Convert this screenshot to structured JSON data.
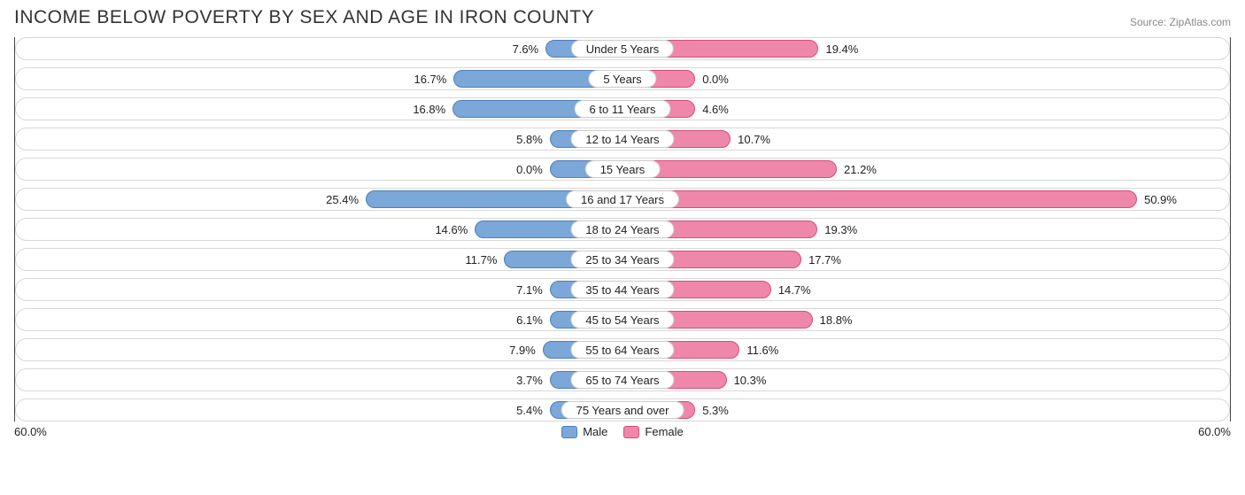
{
  "title": "INCOME BELOW POVERTY BY SEX AND AGE IN IRON COUNTY",
  "source": "Source: ZipAtlas.com",
  "chart": {
    "type": "diverging-bar",
    "axis_max": 60.0,
    "axis_label_left": "60.0%",
    "axis_label_right": "60.0%",
    "male_fill": "#7ba7d9",
    "male_border": "#4f7fb8",
    "female_fill": "#ef87ab",
    "female_border": "#d74c7b",
    "row_bg": "#ffffff",
    "row_border": "#d8d8d8",
    "category_pill_bg": "#ffffff",
    "category_pill_border": "#cccccc",
    "text_color": "#222222",
    "label_fontsize": 13,
    "title_fontsize": 21,
    "title_color": "#333333",
    "source_color": "#888888",
    "categories": [
      {
        "label": "Under 5 Years",
        "male": 7.6,
        "female": 19.4
      },
      {
        "label": "5 Years",
        "male": 16.7,
        "female": 0.0
      },
      {
        "label": "6 to 11 Years",
        "male": 16.8,
        "female": 4.6
      },
      {
        "label": "12 to 14 Years",
        "male": 5.8,
        "female": 10.7
      },
      {
        "label": "15 Years",
        "male": 0.0,
        "female": 21.2
      },
      {
        "label": "16 and 17 Years",
        "male": 25.4,
        "female": 50.9
      },
      {
        "label": "18 to 24 Years",
        "male": 14.6,
        "female": 19.3
      },
      {
        "label": "25 to 34 Years",
        "male": 11.7,
        "female": 17.7
      },
      {
        "label": "35 to 44 Years",
        "male": 7.1,
        "female": 14.7
      },
      {
        "label": "45 to 54 Years",
        "male": 6.1,
        "female": 18.8
      },
      {
        "label": "55 to 64 Years",
        "male": 7.9,
        "female": 11.6
      },
      {
        "label": "65 to 74 Years",
        "male": 3.7,
        "female": 10.3
      },
      {
        "label": "75 Years and over",
        "male": 5.4,
        "female": 5.3
      }
    ]
  },
  "legend": {
    "male": "Male",
    "female": "Female"
  }
}
